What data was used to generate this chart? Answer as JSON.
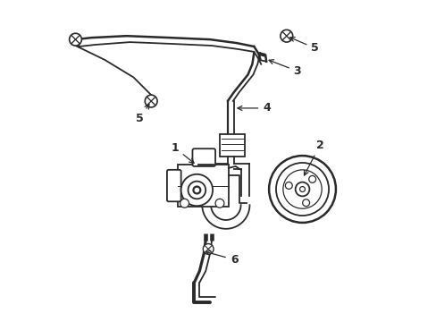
{
  "background_color": "#ffffff",
  "line_color": "#2a2a2a",
  "label_color": "#000000",
  "figsize": [
    4.89,
    3.6
  ],
  "dpi": 100
}
